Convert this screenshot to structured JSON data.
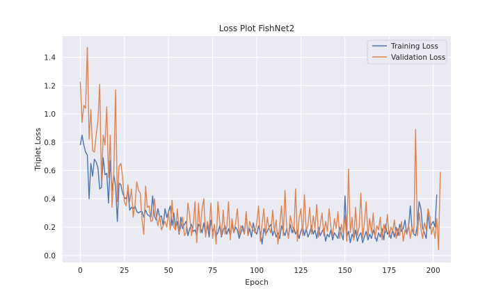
{
  "chart_data": {
    "type": "line",
    "title": "Loss Plot FishNet2",
    "xlabel": "Epoch",
    "ylabel": "Triplet Loss",
    "xlim": [
      -10,
      210
    ],
    "ylim": [
      -0.05,
      1.55
    ],
    "xticks": [
      0,
      25,
      50,
      75,
      100,
      125,
      150,
      175,
      200
    ],
    "yticks": [
      0.0,
      0.2,
      0.4,
      0.6,
      0.8,
      1.0,
      1.2,
      1.4
    ],
    "ytick_labels": [
      "0.0",
      "0.2",
      "0.4",
      "0.6",
      "0.8",
      "1.0",
      "1.2",
      "1.4"
    ],
    "grid": true,
    "legend_position": "top-right",
    "colors": {
      "background": "#eaeaf2",
      "grid": "#ffffff",
      "training": "#4c72b0",
      "validation": "#dd8452"
    },
    "series": [
      {
        "name": "Training Loss",
        "color": "#4c72b0",
        "values": [
          0.78,
          0.85,
          0.78,
          0.73,
          0.71,
          0.4,
          0.65,
          0.56,
          0.68,
          0.66,
          0.62,
          0.47,
          0.48,
          0.69,
          0.57,
          0.58,
          0.37,
          0.67,
          0.46,
          0.57,
          0.49,
          0.24,
          0.51,
          0.5,
          0.44,
          0.41,
          0.4,
          0.46,
          0.32,
          0.34,
          0.33,
          0.35,
          0.31,
          0.3,
          0.31,
          0.31,
          0.27,
          0.32,
          0.29,
          0.28,
          0.27,
          0.42,
          0.28,
          0.25,
          0.33,
          0.27,
          0.28,
          0.21,
          0.33,
          0.27,
          0.31,
          0.35,
          0.21,
          0.3,
          0.19,
          0.24,
          0.15,
          0.27,
          0.19,
          0.22,
          0.24,
          0.14,
          0.19,
          0.22,
          0.17,
          0.18,
          0.14,
          0.22,
          0.2,
          0.16,
          0.23,
          0.15,
          0.22,
          0.13,
          0.25,
          0.17,
          0.2,
          0.14,
          0.16,
          0.21,
          0.13,
          0.18,
          0.21,
          0.15,
          0.19,
          0.14,
          0.22,
          0.16,
          0.2,
          0.18,
          0.12,
          0.16,
          0.21,
          0.15,
          0.3,
          0.14,
          0.19,
          0.13,
          0.23,
          0.17,
          0.15,
          0.21,
          0.16,
          0.08,
          0.19,
          0.15,
          0.17,
          0.2,
          0.22,
          0.14,
          0.18,
          0.13,
          0.16,
          0.12,
          0.21,
          0.17,
          0.14,
          0.19,
          0.13,
          0.22,
          0.16,
          0.2,
          0.15,
          0.18,
          0.12,
          0.17,
          0.2,
          0.14,
          0.19,
          0.13,
          0.16,
          0.21,
          0.15,
          0.18,
          0.12,
          0.2,
          0.14,
          0.17,
          0.19,
          0.1,
          0.15,
          0.13,
          0.18,
          0.11,
          0.16,
          0.14,
          0.12,
          0.2,
          0.15,
          0.11,
          0.42,
          0.13,
          0.17,
          0.09,
          0.15,
          0.12,
          0.18,
          0.1,
          0.14,
          0.16,
          0.09,
          0.13,
          0.17,
          0.11,
          0.15,
          0.12,
          0.18,
          0.14,
          0.1,
          0.16,
          0.13,
          0.19,
          0.11,
          0.22,
          0.15,
          0.17,
          0.12,
          0.18,
          0.13,
          0.2,
          0.14,
          0.22,
          0.17,
          0.19,
          0.25,
          0.15,
          0.2,
          0.35,
          0.18,
          0.15,
          0.14,
          0.22,
          0.38,
          0.33,
          0.19,
          0.16,
          0.12,
          0.3,
          0.19,
          0.22,
          0.24,
          0.2,
          0.43
        ]
      },
      {
        "name": "Validation Loss",
        "color": "#dd8452",
        "values": [
          1.23,
          0.94,
          1.06,
          1.04,
          1.47,
          0.82,
          1.03,
          0.74,
          0.73,
          0.85,
          0.95,
          1.21,
          0.52,
          0.85,
          0.78,
          1.05,
          0.55,
          0.85,
          0.34,
          0.59,
          1.17,
          0.38,
          0.63,
          0.65,
          0.55,
          0.38,
          0.35,
          0.5,
          0.38,
          0.47,
          0.27,
          0.36,
          0.52,
          0.46,
          0.44,
          0.25,
          0.15,
          0.49,
          0.34,
          0.35,
          0.24,
          0.25,
          0.4,
          0.28,
          0.21,
          0.28,
          0.18,
          0.21,
          0.24,
          0.2,
          0.31,
          0.18,
          0.39,
          0.2,
          0.18,
          0.33,
          0.16,
          0.2,
          0.27,
          0.14,
          0.16,
          0.37,
          0.28,
          0.14,
          0.21,
          0.38,
          0.09,
          0.37,
          0.16,
          0.33,
          0.4,
          0.13,
          0.24,
          0.18,
          0.37,
          0.12,
          0.22,
          0.08,
          0.38,
          0.24,
          0.14,
          0.32,
          0.15,
          0.2,
          0.38,
          0.11,
          0.26,
          0.16,
          0.23,
          0.33,
          0.14,
          0.21,
          0.18,
          0.15,
          0.31,
          0.14,
          0.24,
          0.2,
          0.18,
          0.16,
          0.23,
          0.35,
          0.1,
          0.22,
          0.33,
          0.14,
          0.27,
          0.19,
          0.16,
          0.32,
          0.17,
          0.25,
          0.08,
          0.21,
          0.35,
          0.14,
          0.46,
          0.19,
          0.12,
          0.28,
          0.22,
          0.16,
          0.47,
          0.1,
          0.26,
          0.33,
          0.14,
          0.43,
          0.18,
          0.21,
          0.34,
          0.15,
          0.28,
          0.19,
          0.36,
          0.13,
          0.22,
          0.3,
          0.14,
          0.24,
          0.17,
          0.33,
          0.2,
          0.14,
          0.26,
          0.19,
          0.31,
          0.12,
          0.22,
          0.15,
          0.28,
          0.1,
          0.61,
          0.16,
          0.27,
          0.11,
          0.34,
          0.14,
          0.2,
          0.44,
          0.12,
          0.23,
          0.38,
          0.14,
          0.26,
          0.16,
          0.3,
          0.12,
          0.21,
          0.18,
          0.27,
          0.11,
          0.22,
          0.16,
          0.29,
          0.13,
          0.2,
          0.17,
          0.25,
          0.12,
          0.19,
          0.14,
          0.24,
          0.1,
          0.18,
          0.15,
          0.22,
          0.12,
          0.2,
          0.16,
          0.89,
          0.14,
          0.3,
          0.19,
          0.12,
          0.23,
          0.18,
          0.33,
          0.28,
          0.15,
          0.2,
          0.12,
          0.26,
          0.04,
          0.59
        ]
      }
    ]
  }
}
